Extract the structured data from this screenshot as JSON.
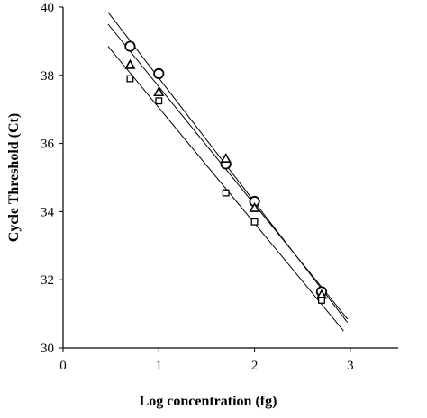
{
  "chart_data": {
    "type": "scatter",
    "title": "",
    "xlabel": "Log concentration (fg)",
    "ylabel": "Cycle Threshold (Ct)",
    "xlim": [
      0,
      3.5
    ],
    "ylim": [
      30,
      40
    ],
    "x_ticks": [
      0,
      1,
      2,
      3
    ],
    "y_ticks": [
      30,
      32,
      34,
      36,
      38,
      40
    ],
    "grid": false,
    "legend": "none",
    "series": [
      {
        "marker": "circle",
        "points": [
          [
            0.7,
            38.85
          ],
          [
            1.0,
            38.05
          ],
          [
            1.7,
            35.4
          ],
          [
            2.0,
            34.3
          ],
          [
            2.7,
            31.65
          ]
        ],
        "fit_line": {
          "x_range": [
            0.47,
            2.97
          ],
          "y_range": [
            39.85,
            30.75
          ]
        }
      },
      {
        "marker": "triangle",
        "points": [
          [
            0.7,
            38.3
          ],
          [
            1.0,
            37.5
          ],
          [
            1.7,
            35.55
          ],
          [
            2.0,
            34.1
          ],
          [
            2.7,
            31.55
          ]
        ],
        "fit_line": {
          "x_range": [
            0.47,
            2.97
          ],
          "y_range": [
            39.5,
            30.85
          ]
        }
      },
      {
        "marker": "square",
        "points": [
          [
            0.7,
            37.9
          ],
          [
            1.0,
            37.25
          ],
          [
            1.7,
            34.55
          ],
          [
            2.0,
            33.7
          ],
          [
            2.7,
            31.4
          ]
        ],
        "fit_line": {
          "x_range": [
            0.47,
            2.93
          ],
          "y_range": [
            38.85,
            30.5
          ]
        }
      }
    ]
  }
}
